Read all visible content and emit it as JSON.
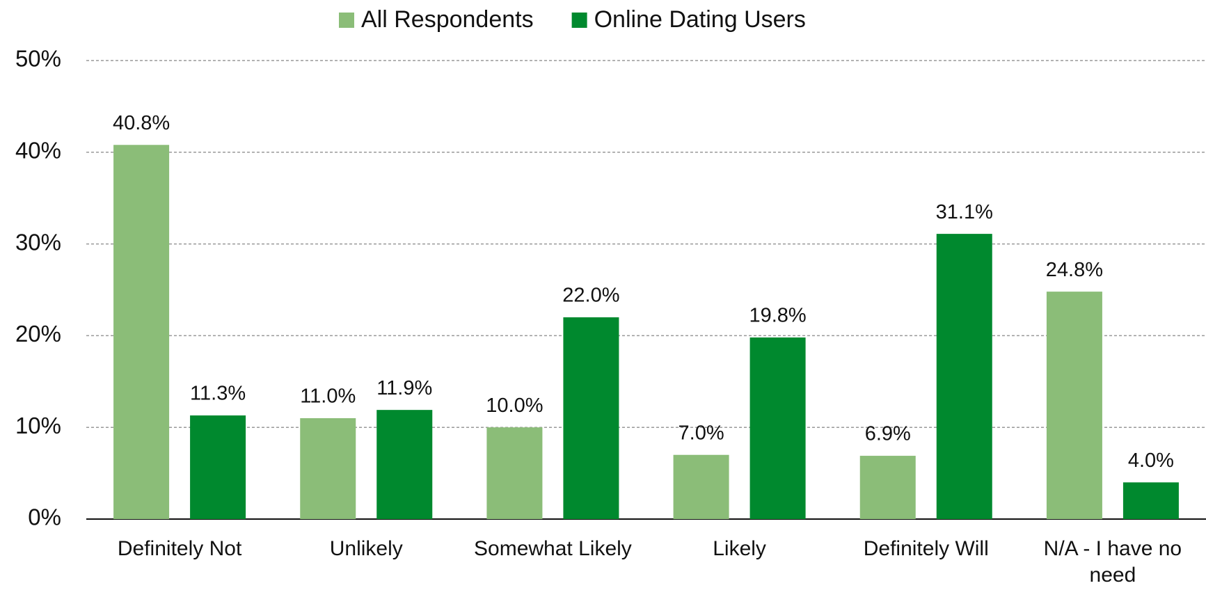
{
  "chart_data": {
    "type": "bar",
    "categories": [
      "Definitely Not",
      "Unlikely",
      "Somewhat Likely",
      "Likely",
      "Definitely Will",
      "N/A - I have no need"
    ],
    "series": [
      {
        "name": "All Respondents",
        "color": "#8bbd78",
        "values": [
          40.8,
          11.0,
          10.0,
          7.0,
          6.9,
          24.8
        ],
        "value_labels": [
          "40.8%",
          "11.0%",
          "10.0%",
          "7.0%",
          "6.9%",
          "24.8%"
        ]
      },
      {
        "name": "Online Dating Users",
        "color": "#00892e",
        "values": [
          11.3,
          11.9,
          22.0,
          19.8,
          31.1,
          4.0
        ],
        "value_labels": [
          "11.3%",
          "11.9%",
          "22.0%",
          "19.8%",
          "31.1%",
          "4.0%"
        ]
      }
    ],
    "ylim": [
      0,
      50
    ],
    "yticks": [
      {
        "value": 0,
        "label": "0%"
      },
      {
        "value": 10,
        "label": "10%"
      },
      {
        "value": 20,
        "label": "20%"
      },
      {
        "value": 30,
        "label": "30%"
      },
      {
        "value": 40,
        "label": "40%"
      },
      {
        "value": 50,
        "label": "50%"
      }
    ],
    "grid": true,
    "legend": "top"
  }
}
